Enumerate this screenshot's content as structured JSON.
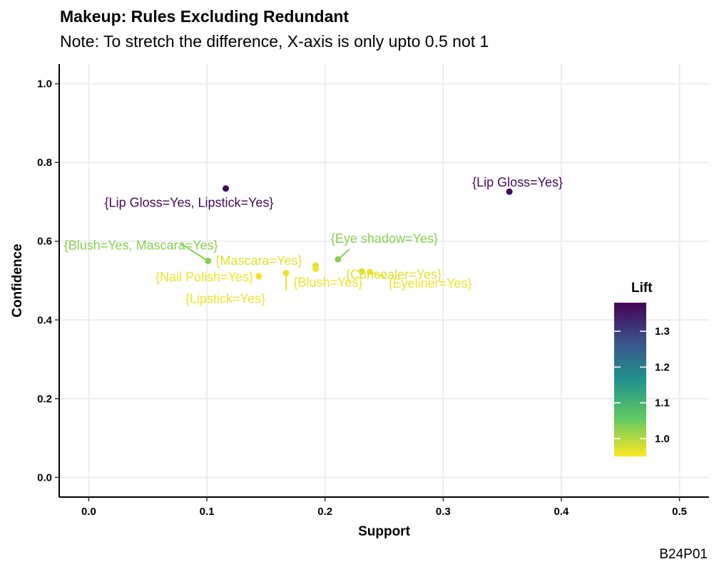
{
  "title": "Makeup: Rules Excluding Redundant",
  "subtitle": "Note: To stretch the difference, X-axis is only upto 0.5 not 1",
  "caption": "B24P01",
  "chart_data": {
    "type": "scatter",
    "xlabel": "Support",
    "ylabel": "Confidence",
    "xlim": [
      -0.025,
      0.525
    ],
    "ylim": [
      -0.05,
      1.05
    ],
    "x_ticks": [
      "0.0",
      "0.1",
      "0.2",
      "0.3",
      "0.4",
      "0.5"
    ],
    "y_ticks": [
      "0.0",
      "0.2",
      "0.4",
      "0.6",
      "0.8",
      "1.0"
    ],
    "grid": true,
    "legend": {
      "title": "Lift",
      "position": "right",
      "ticks": [
        "1.0",
        "1.1",
        "1.2",
        "1.3"
      ],
      "range": [
        0.95,
        1.38
      ]
    },
    "points": [
      {
        "label": "{Lip Gloss=Yes, Lipstick=Yes}",
        "support": 0.116,
        "confidence": 0.734,
        "lift": 1.37
      },
      {
        "label": "{Lip Gloss=Yes}",
        "support": 0.356,
        "confidence": 0.726,
        "lift": 1.37
      },
      {
        "label": "{Blush=Yes, Mascara=Yes}",
        "support": 0.101,
        "confidence": 0.55,
        "lift": 1.03
      },
      {
        "label": "{Mascara=Yes}",
        "support": 0.192,
        "confidence": 0.538,
        "lift": 0.97
      },
      {
        "label": "{Eye shadow=Yes}",
        "support": 0.211,
        "confidence": 0.554,
        "lift": 1.03
      },
      {
        "label": "{Concealer=Yes}",
        "support": 0.231,
        "confidence": 0.523,
        "lift": 0.97
      },
      {
        "label": "{Nail Polish=Yes}",
        "support": 0.144,
        "confidence": 0.511,
        "lift": 0.96
      },
      {
        "label": "{Lipstick=Yes}",
        "support": 0.167,
        "confidence": 0.519,
        "lift": 0.96
      },
      {
        "label": "{Blush=Yes}",
        "support": 0.192,
        "confidence": 0.53,
        "lift": 0.96
      },
      {
        "label": "{Eyeliner=Yes}",
        "support": 0.238,
        "confidence": 0.522,
        "lift": 0.96
      }
    ]
  }
}
